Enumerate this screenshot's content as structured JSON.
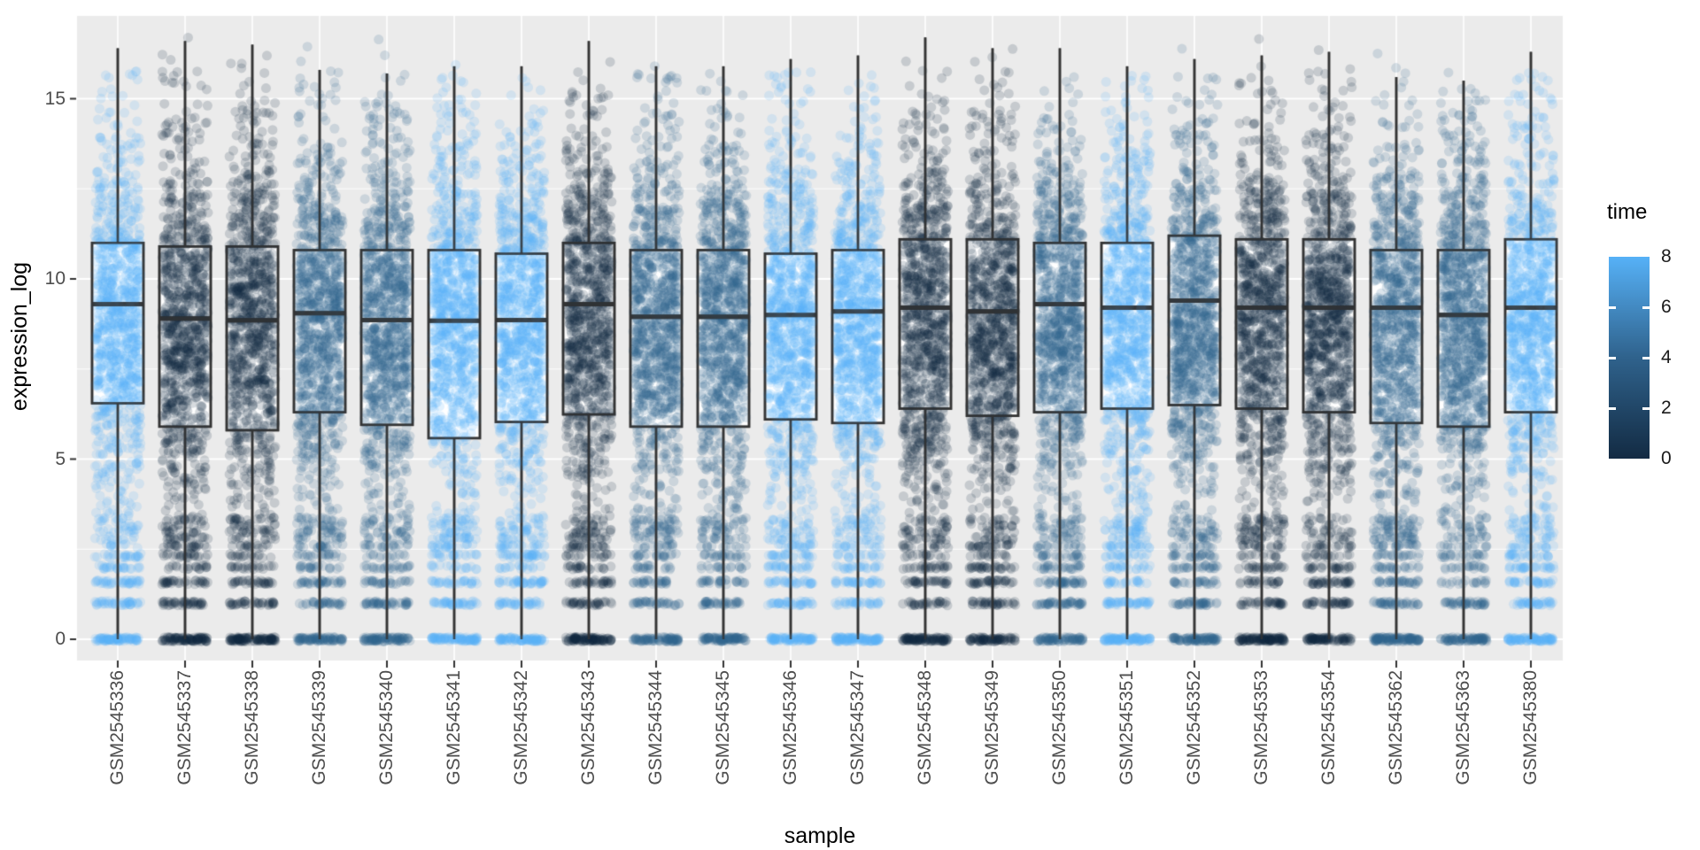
{
  "chart_data": {
    "type": "boxplot-jitter",
    "title": "",
    "xlabel": "sample",
    "ylabel": "expression_log",
    "y_ticks": [
      0,
      5,
      10,
      15
    ],
    "y_minor_ticks": [
      2.5,
      7.5,
      12.5
    ],
    "ylim": [
      -0.6,
      17.3
    ],
    "grid": "on",
    "legend_position": "right",
    "colors": {
      "panel_background": "#EBEBEB",
      "gridline": "#FFFFFF",
      "box_stroke": "#343434",
      "axis_text": "#4D4D4D",
      "axis_title": "#000000",
      "tick_mark": "#333333",
      "time_scale": {
        "0": "#132B43",
        "4": "#2F628C",
        "8": "#56B1F7"
      }
    },
    "legend": {
      "title": "time",
      "ticks": [
        8,
        6,
        4,
        2,
        0
      ],
      "domain": [
        0,
        8
      ],
      "low_color": "#132B43",
      "mid_color": "#2F628C",
      "high_color": "#56B1F7"
    },
    "samples": [
      {
        "name": "GSM2545336",
        "time": 8,
        "q1": 6.55,
        "median": 9.3,
        "q3": 11.0,
        "whisker_low": 0,
        "whisker_high": 16.4
      },
      {
        "name": "GSM2545337",
        "time": 0,
        "q1": 5.9,
        "median": 8.9,
        "q3": 10.9,
        "whisker_low": 0,
        "whisker_high": 16.6
      },
      {
        "name": "GSM2545338",
        "time": 0,
        "q1": 5.8,
        "median": 8.85,
        "q3": 10.9,
        "whisker_low": 0,
        "whisker_high": 16.5
      },
      {
        "name": "GSM2545339",
        "time": 4,
        "q1": 6.3,
        "median": 9.05,
        "q3": 10.8,
        "whisker_low": 0,
        "whisker_high": 15.8
      },
      {
        "name": "GSM2545340",
        "time": 4,
        "q1": 5.95,
        "median": 8.86,
        "q3": 10.8,
        "whisker_low": 0,
        "whisker_high": 15.7
      },
      {
        "name": "GSM2545341",
        "time": 8,
        "q1": 5.58,
        "median": 8.84,
        "q3": 10.8,
        "whisker_low": 0,
        "whisker_high": 15.9
      },
      {
        "name": "GSM2545342",
        "time": 8,
        "q1": 6.03,
        "median": 8.86,
        "q3": 10.7,
        "whisker_low": 0,
        "whisker_high": 15.9
      },
      {
        "name": "GSM2545343",
        "time": 0,
        "q1": 6.24,
        "median": 9.3,
        "q3": 11.0,
        "whisker_low": 0,
        "whisker_high": 16.6
      },
      {
        "name": "GSM2545344",
        "time": 4,
        "q1": 5.9,
        "median": 8.95,
        "q3": 10.8,
        "whisker_low": 0,
        "whisker_high": 15.9
      },
      {
        "name": "GSM2545345",
        "time": 4,
        "q1": 5.9,
        "median": 8.95,
        "q3": 10.8,
        "whisker_low": 0,
        "whisker_high": 15.9
      },
      {
        "name": "GSM2545346",
        "time": 8,
        "q1": 6.1,
        "median": 9.0,
        "q3": 10.7,
        "whisker_low": 0,
        "whisker_high": 16.1
      },
      {
        "name": "GSM2545347",
        "time": 8,
        "q1": 6.0,
        "median": 9.1,
        "q3": 10.8,
        "whisker_low": 0,
        "whisker_high": 16.2
      },
      {
        "name": "GSM2545348",
        "time": 0,
        "q1": 6.4,
        "median": 9.2,
        "q3": 11.1,
        "whisker_low": 0,
        "whisker_high": 16.7
      },
      {
        "name": "GSM2545349",
        "time": 0,
        "q1": 6.2,
        "median": 9.1,
        "q3": 11.1,
        "whisker_low": 0,
        "whisker_high": 16.4
      },
      {
        "name": "GSM2545350",
        "time": 4,
        "q1": 6.3,
        "median": 9.3,
        "q3": 11.0,
        "whisker_low": 0,
        "whisker_high": 16.4
      },
      {
        "name": "GSM2545351",
        "time": 8,
        "q1": 6.4,
        "median": 9.2,
        "q3": 11.0,
        "whisker_low": 0,
        "whisker_high": 15.9
      },
      {
        "name": "GSM2545352",
        "time": 4,
        "q1": 6.5,
        "median": 9.4,
        "q3": 11.2,
        "whisker_low": 0,
        "whisker_high": 16.1
      },
      {
        "name": "GSM2545353",
        "time": 0,
        "q1": 6.4,
        "median": 9.2,
        "q3": 11.1,
        "whisker_low": 0,
        "whisker_high": 16.2
      },
      {
        "name": "GSM2545354",
        "time": 0,
        "q1": 6.3,
        "median": 9.2,
        "q3": 11.1,
        "whisker_low": 0,
        "whisker_high": 16.3
      },
      {
        "name": "GSM2545362",
        "time": 4,
        "q1": 6.0,
        "median": 9.2,
        "q3": 10.8,
        "whisker_low": 0,
        "whisker_high": 15.6
      },
      {
        "name": "GSM2545363",
        "time": 4,
        "q1": 5.9,
        "median": 9.0,
        "q3": 10.8,
        "whisker_low": 0,
        "whisker_high": 15.5
      },
      {
        "name": "GSM2545380",
        "time": 8,
        "q1": 6.3,
        "median": 9.2,
        "q3": 11.1,
        "whisker_low": 0,
        "whisker_high": 16.3
      }
    ]
  }
}
